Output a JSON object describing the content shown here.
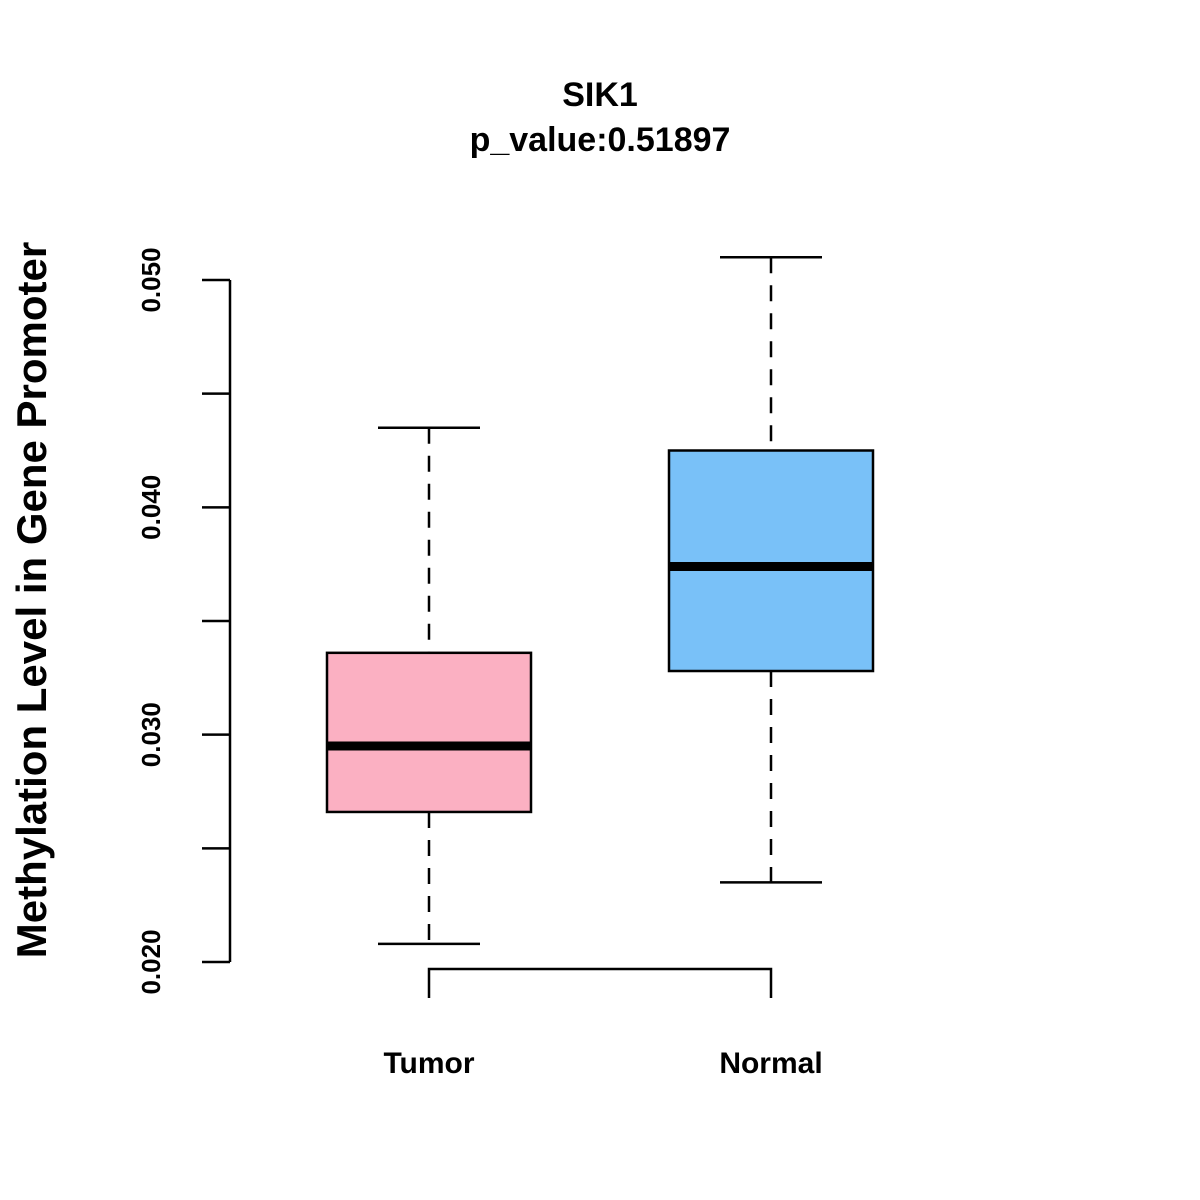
{
  "chart_data": {
    "type": "boxplot",
    "title": "SIK1",
    "subtitle": "p_value:0.51897",
    "xlabel": "",
    "ylabel": "Methylation Level in Gene Promoter",
    "ylim": [
      0.02,
      0.05
    ],
    "y_ticks": [
      0.02,
      0.025,
      0.03,
      0.035,
      0.04,
      0.045,
      0.05
    ],
    "y_tick_labels": [
      "0.020",
      "",
      "0.030",
      "",
      "0.040",
      "",
      "0.050"
    ],
    "categories": [
      "Tumor",
      "Normal"
    ],
    "boxes": [
      {
        "name": "Tumor",
        "min": 0.0208,
        "q1": 0.0266,
        "median": 0.0295,
        "q3": 0.0336,
        "max": 0.0435,
        "color": "#fbb0c2"
      },
      {
        "name": "Normal",
        "min": 0.0235,
        "q1": 0.0328,
        "median": 0.0374,
        "q3": 0.0425,
        "max": 0.051,
        "color": "#79c1f8"
      }
    ],
    "comparison_bracket": true
  }
}
